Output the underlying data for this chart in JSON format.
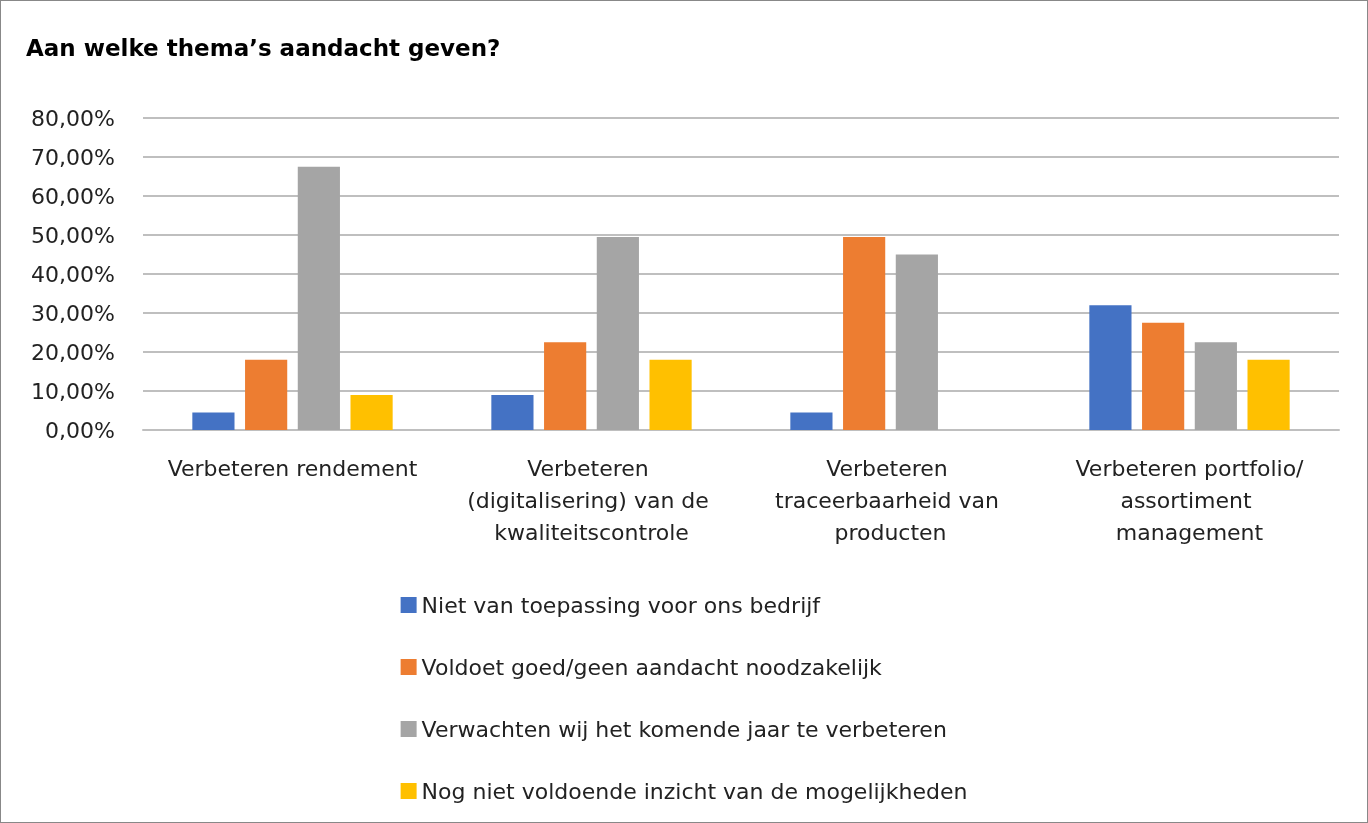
{
  "chart_data": {
    "type": "bar",
    "title": "Aan welke thema’s aandacht geven?",
    "categories": [
      "Verbeteren rendement",
      "Verbeteren (digitalisering) van de kwaliteitscontrole",
      "Verbeteren traceerbaarheid van producten",
      "Verbeteren portfolio/assortiment management"
    ],
    "series": [
      {
        "name": "Niet van toepassing voor ons bedrijf",
        "color": "#4472c4",
        "values": [
          4.5,
          9,
          4.5,
          32
        ]
      },
      {
        "name": "Voldoet goed/geen aandacht noodzakelijk",
        "color": "#ed7d31",
        "values": [
          18,
          22.5,
          49.5,
          27.5
        ]
      },
      {
        "name": "Verwachten wij het komende jaar te verbeteren",
        "color": "#a5a5a5",
        "values": [
          67.5,
          49.5,
          45,
          22.5
        ]
      },
      {
        "name": "Nog niet voldoende inzicht van de mogelijkheden",
        "color": "#ffc000",
        "values": [
          9,
          18,
          0,
          18
        ]
      }
    ],
    "ylim": [
      0,
      80
    ],
    "yticks": [
      {
        "value": 0,
        "label": "0,00%"
      },
      {
        "value": 10,
        "label": "10,00%"
      },
      {
        "value": 20,
        "label": "20,00%"
      },
      {
        "value": 30,
        "label": "30,00%"
      },
      {
        "value": 40,
        "label": "40,00%"
      },
      {
        "value": 50,
        "label": "50,00%"
      },
      {
        "value": 60,
        "label": "60,00%"
      },
      {
        "value": 70,
        "label": "70,00%"
      },
      {
        "value": 80,
        "label": "80,00%"
      }
    ],
    "grid": "y",
    "legend": "bottom"
  }
}
